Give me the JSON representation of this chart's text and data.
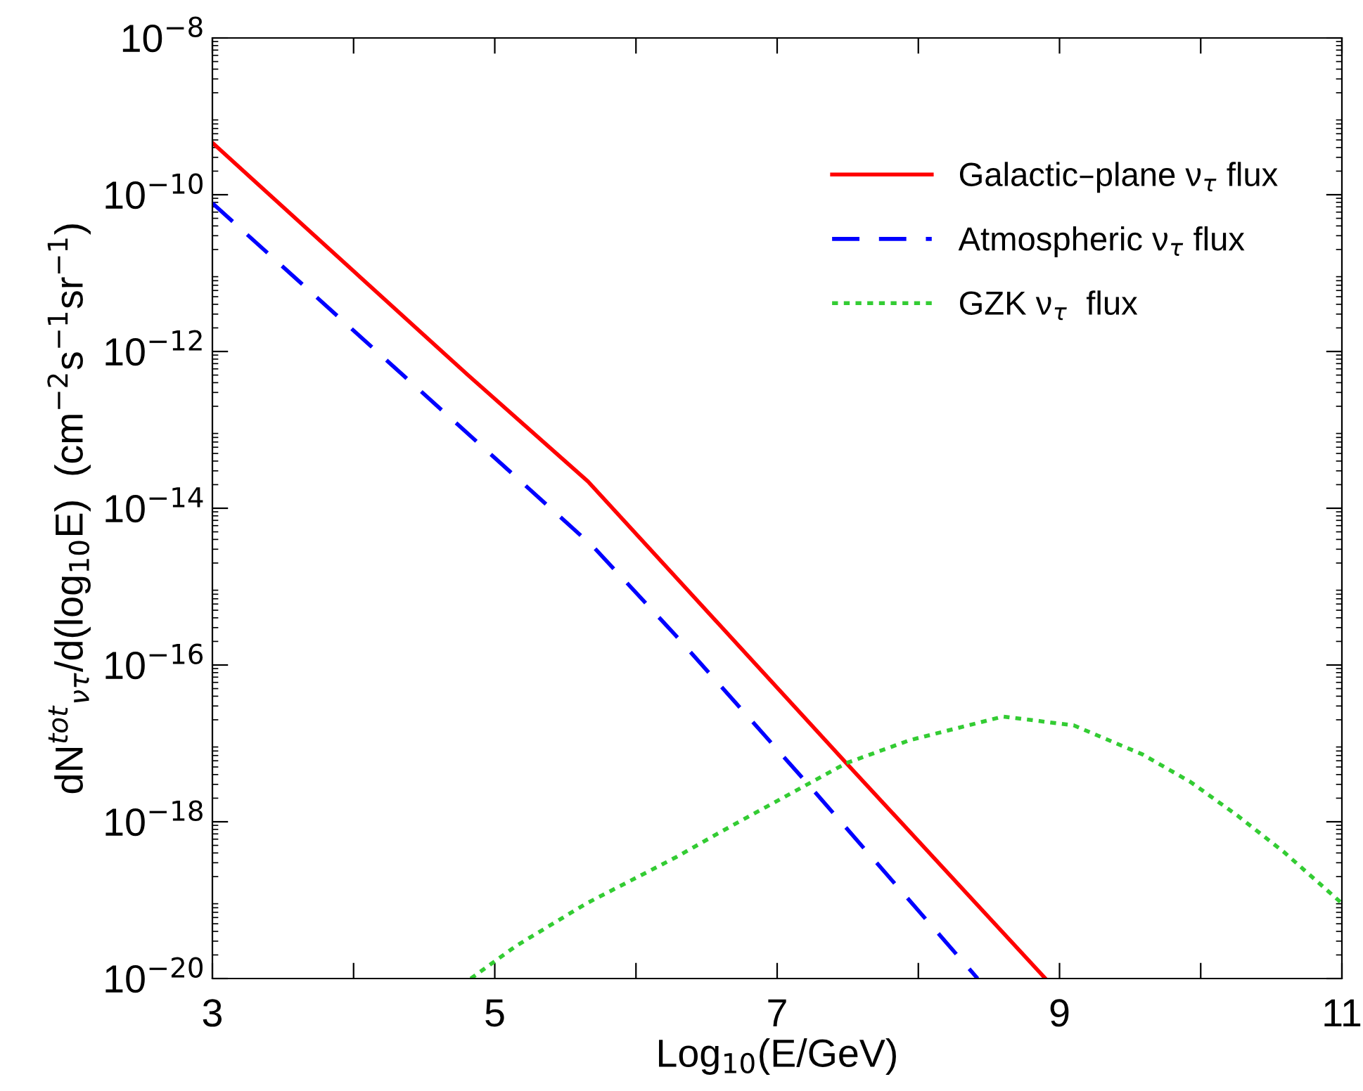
{
  "chart_data": {
    "type": "line",
    "xlabel": "Log$_{10}$(E/GeV)",
    "ylabel": "dN$^{tot}$$_{ντ}$/d(log$_{10}$E)  (cm$^{−2}$s$^{−1}$sr$^{−1}$)",
    "log": "y",
    "xlim": [
      3,
      11
    ],
    "ylim": [
      1e-20,
      1e-08
    ],
    "xticks": [
      3,
      {
        "value": 4,
        "label": null
      },
      5,
      {
        "value": 6,
        "label": null
      },
      7,
      {
        "value": 8,
        "label": null
      },
      9,
      {
        "value": 10,
        "label": null
      },
      11
    ],
    "yticks": [
      {
        "value": 1e-20,
        "label": "10$^{−20}$"
      },
      {
        "value": 1e-18,
        "label": "10$^{−18}$"
      },
      {
        "value": 1e-16,
        "label": "10$^{−16}$"
      },
      {
        "value": 1e-14,
        "label": "10$^{−14}$"
      },
      {
        "value": 1e-12,
        "label": "10$^{−12}$"
      },
      {
        "value": 1e-10,
        "label": "10$^{−10}$"
      },
      {
        "value": 1e-08,
        "label": "10$^{−8}$"
      }
    ],
    "legend": "top right",
    "grid": false,
    "series": [
      {
        "name": "Galactic–plane ν$_{τ}$ flux",
        "color": "#ff0000",
        "line_style": "solid",
        "x": [
          3,
          4.81,
          5.66,
          7.49,
          8.9
        ],
        "values": [
          4.6e-10,
          5e-13,
          2.2e-14,
          5.6e-18,
          1e-20
        ]
      },
      {
        "name": "Atmospheric ν$_{τ}$ flux",
        "color": "#0000ff",
        "line_style": "dashed",
        "x": [
          3,
          5.7,
          6.28,
          7.22,
          8.42
        ],
        "values": [
          7.8e-11,
          3.2e-15,
          2.4e-16,
          3e-18,
          1e-20
        ]
      },
      {
        "name": "GZK ν$_{τ}$  flux",
        "color": "#33cc33",
        "line_style": "dotted",
        "x": [
          4.83,
          5.15,
          5.65,
          6.28,
          6.61,
          7.27,
          7.49,
          7.94,
          8.6,
          9.1,
          9.59,
          9.93,
          10.26,
          10.59,
          11
        ],
        "values": [
          1e-20,
          2.6e-20,
          9.1e-20,
          3.5e-19,
          7.6e-19,
          3.4e-18,
          5.6e-18,
          1.1e-17,
          2.2e-17,
          1.7e-17,
          7.2e-18,
          3.2e-18,
          1.2e-18,
          4.1e-19,
          9.1e-20
        ]
      }
    ]
  }
}
